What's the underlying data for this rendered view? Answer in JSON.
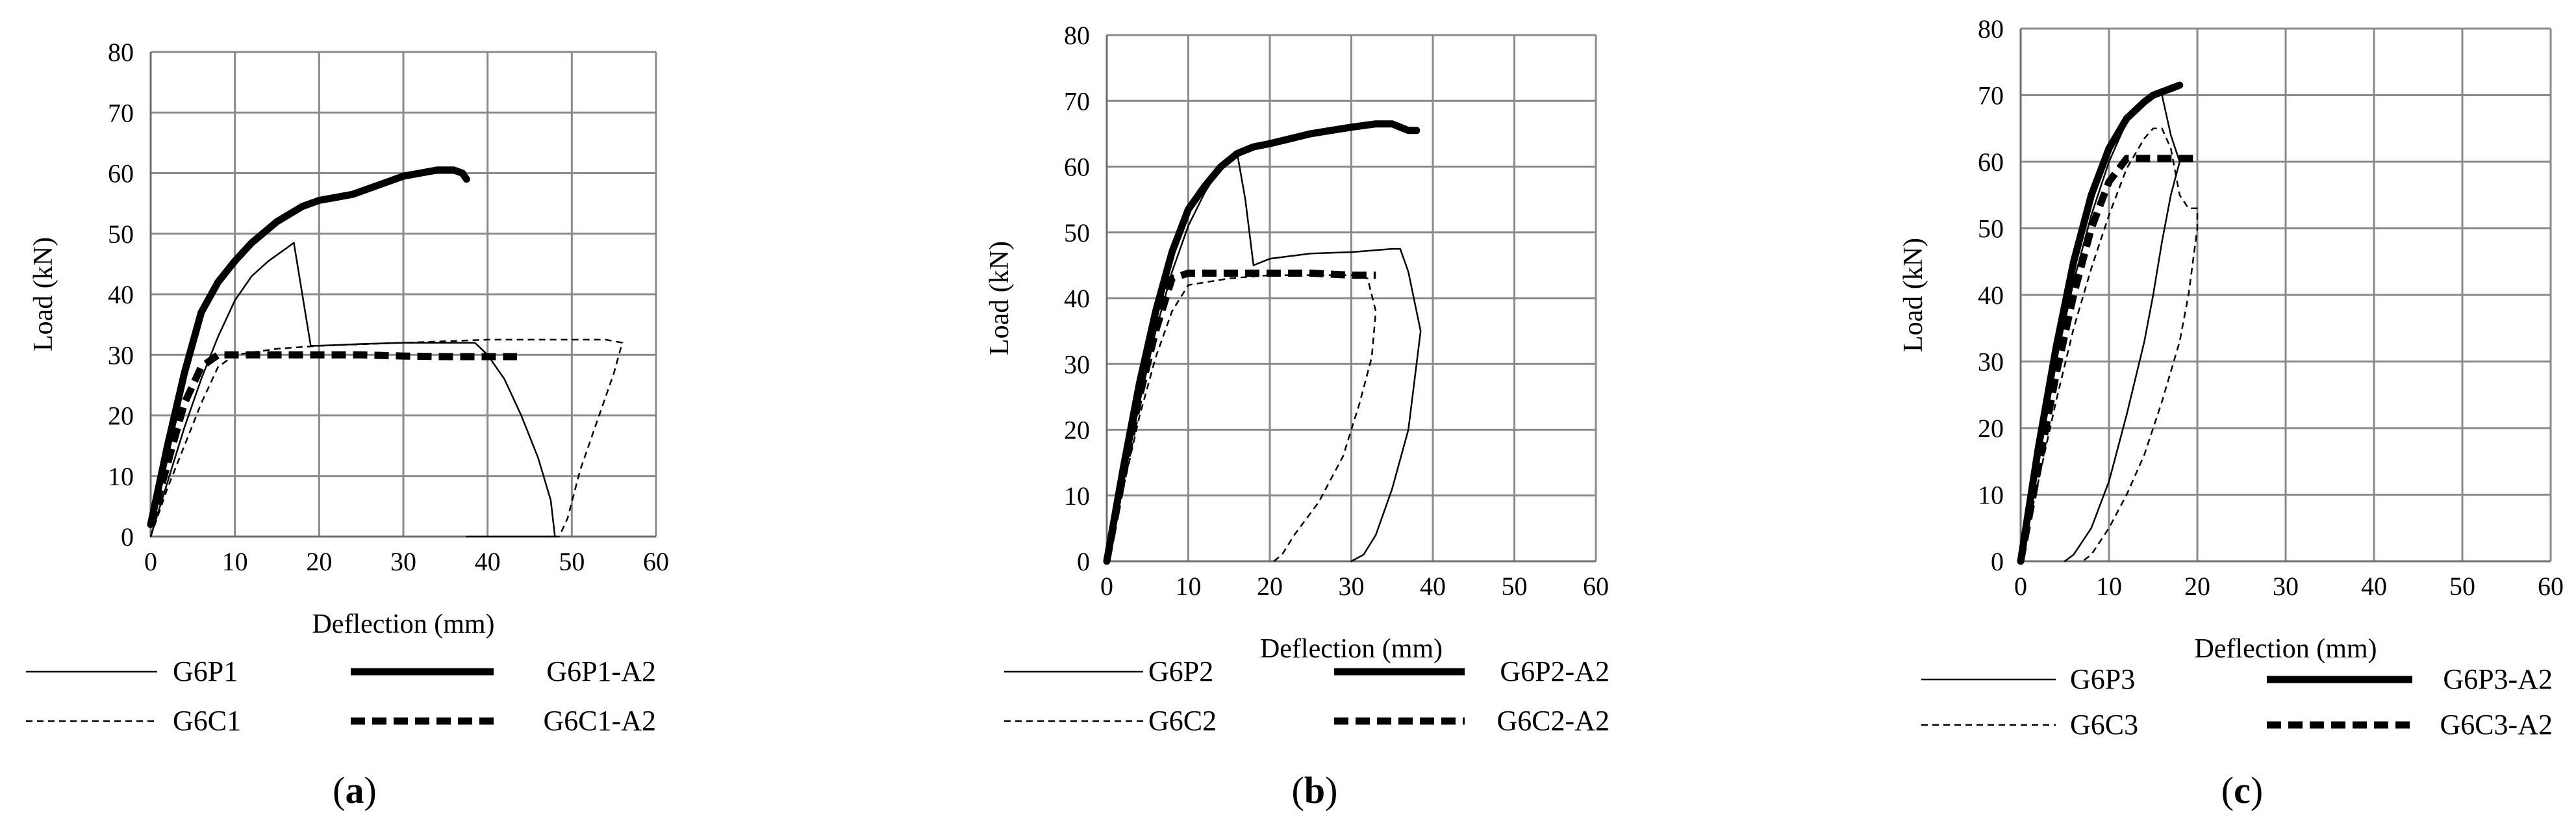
{
  "figure": {
    "panels": [
      "(a)",
      "(b)",
      "(c)"
    ]
  },
  "chart_data": [
    {
      "type": "line",
      "panel_label": "a",
      "xlabel": "Deflection (mm)",
      "ylabel": "Load (kN)",
      "xlim": [
        0,
        60
      ],
      "ylim": [
        0,
        80
      ],
      "xticks": [
        "0",
        "10",
        "20",
        "30",
        "40",
        "50",
        "60"
      ],
      "yticks": [
        "0",
        "10",
        "20",
        "30",
        "40",
        "50",
        "60",
        "70",
        "80"
      ],
      "grid": true,
      "legend": [
        "G6P1",
        "G6P1-A2",
        "G6C1",
        "G6C1-A2"
      ],
      "series": [
        {
          "name": "G6P1",
          "style": "thin-solid",
          "x": [
            0,
            2,
            4,
            6,
            8,
            10,
            12,
            14,
            16,
            17,
            18,
            19,
            20,
            25,
            30,
            35,
            38.5,
            40,
            42,
            44,
            46,
            47.5,
            48,
            46,
            43,
            40,
            37.5
          ],
          "y": [
            0,
            9,
            18,
            26,
            33,
            39,
            43,
            45.5,
            47.5,
            48.5,
            40,
            31.5,
            31.5,
            31.8,
            32,
            32,
            32,
            30,
            26,
            20,
            13,
            6,
            0,
            0,
            0,
            0,
            0
          ]
        },
        {
          "name": "G6P1-A2",
          "style": "thick-solid",
          "x": [
            0,
            2,
            4,
            6,
            8,
            10,
            12,
            15,
            18,
            20,
            22,
            24,
            26,
            28,
            30,
            32,
            34,
            35,
            36,
            37,
            37.5
          ],
          "y": [
            2,
            15,
            27,
            37,
            42,
            45.5,
            48.5,
            52,
            54.5,
            55.5,
            56,
            56.5,
            57.5,
            58.5,
            59.5,
            60,
            60.5,
            60.5,
            60.5,
            60,
            59
          ]
        },
        {
          "name": "G6C1",
          "style": "thin-dashed",
          "x": [
            0,
            2,
            4,
            6,
            8,
            10,
            15,
            20,
            30,
            40,
            50,
            54,
            56,
            55,
            53,
            51,
            49.5,
            48.5,
            47
          ],
          "y": [
            0,
            8,
            15,
            22,
            28,
            30,
            31,
            31.5,
            32,
            32.5,
            32.5,
            32.5,
            32,
            27,
            19,
            11,
            3,
            0,
            0
          ]
        },
        {
          "name": "G6C1-A2",
          "style": "thick-dashed",
          "x": [
            0,
            2,
            4,
            6,
            8,
            10,
            15,
            20,
            25,
            30,
            35,
            40,
            43.5
          ],
          "y": [
            2,
            12,
            22,
            28,
            30,
            30,
            30,
            30,
            30,
            29.8,
            29.7,
            29.7,
            29.7
          ]
        }
      ]
    },
    {
      "type": "line",
      "panel_label": "b",
      "xlabel": "Deflection (mm)",
      "ylabel": "Load (kN)",
      "xlim": [
        0,
        60
      ],
      "ylim": [
        0,
        80
      ],
      "xticks": [
        "0",
        "10",
        "20",
        "30",
        "40",
        "50",
        "60"
      ],
      "yticks": [
        "0",
        "10",
        "20",
        "30",
        "40",
        "50",
        "60",
        "70",
        "80"
      ],
      "grid": true,
      "legend": [
        "G6P2",
        "G6P2-A2",
        "G6C2",
        "G6C2-A2"
      ],
      "series": [
        {
          "name": "G6P2",
          "style": "thin-solid",
          "x": [
            0,
            2,
            4,
            6,
            8,
            10,
            12,
            14,
            15.5,
            16,
            17,
            18,
            20,
            25,
            30,
            35,
            36,
            37,
            38,
            38.5,
            37,
            35,
            33,
            31.5,
            30
          ],
          "y": [
            0,
            12,
            24,
            35,
            44,
            51,
            56,
            60,
            62,
            62,
            55,
            45,
            46,
            46.8,
            47,
            47.5,
            47.5,
            44,
            38,
            35,
            20,
            11,
            4,
            1,
            0
          ]
        },
        {
          "name": "G6P2-A2",
          "style": "thick-solid",
          "x": [
            0,
            2,
            4,
            6,
            8,
            10,
            12,
            14,
            16,
            18,
            20,
            25,
            30,
            33,
            35,
            36,
            37,
            38
          ],
          "y": [
            0,
            14,
            27,
            38,
            47,
            53.5,
            57,
            60,
            62,
            63,
            63.5,
            65,
            66,
            66.5,
            66.5,
            66,
            65.5,
            65.5
          ]
        },
        {
          "name": "G6C2",
          "style": "thin-dashed",
          "x": [
            0,
            2,
            4,
            6,
            8,
            10,
            15,
            20,
            25,
            30,
            32,
            33,
            32.5,
            31,
            29,
            26,
            23,
            21.5,
            20.5
          ],
          "y": [
            0,
            11,
            22,
            31,
            38,
            42,
            43,
            43.5,
            43.5,
            43.5,
            43,
            38,
            31,
            24,
            16,
            9,
            4,
            1,
            0
          ]
        },
        {
          "name": "G6C2-A2",
          "style": "thick-dashed",
          "x": [
            0,
            2,
            4,
            6,
            8,
            10,
            15,
            20,
            25,
            30,
            33
          ],
          "y": [
            0,
            13,
            25,
            35,
            43,
            43.8,
            43.8,
            43.8,
            43.8,
            43.5,
            43.5
          ]
        }
      ]
    },
    {
      "type": "line",
      "panel_label": "c",
      "xlabel": "Deflection (mm)",
      "ylabel": "Load (kN)",
      "xlim": [
        0,
        60
      ],
      "ylim": [
        0,
        80
      ],
      "xticks": [
        "0",
        "10",
        "20",
        "30",
        "40",
        "50",
        "60"
      ],
      "yticks": [
        "0",
        "10",
        "20",
        "30",
        "40",
        "50",
        "60",
        "70",
        "80"
      ],
      "grid": true,
      "legend": [
        "G6P3",
        "G6P3-A2",
        "G6C3",
        "G6C3-A2"
      ],
      "series": [
        {
          "name": "G6P3",
          "style": "thin-solid",
          "x": [
            0,
            2,
            4,
            6,
            8,
            10,
            12,
            14,
            15,
            16,
            17,
            18,
            17,
            16,
            15,
            14,
            12,
            10,
            8,
            6,
            5
          ],
          "y": [
            0,
            15,
            30,
            42,
            52,
            60,
            66,
            69,
            70,
            70,
            64,
            60,
            55,
            48,
            40,
            33,
            22,
            12,
            5,
            1,
            0
          ]
        },
        {
          "name": "G6P3-A2",
          "style": "thick-solid",
          "x": [
            0,
            2,
            4,
            6,
            8,
            10,
            12,
            14,
            15,
            16,
            17,
            18
          ],
          "y": [
            0,
            17,
            32,
            45,
            55,
            62,
            66.5,
            69,
            70,
            70.5,
            71,
            71.5
          ]
        },
        {
          "name": "G6C3",
          "style": "thin-dashed",
          "x": [
            0,
            2,
            4,
            6,
            8,
            10,
            12,
            14,
            15,
            16,
            17,
            18,
            19,
            20,
            20,
            19,
            18,
            16,
            14,
            12,
            10,
            8,
            7
          ],
          "y": [
            0,
            12,
            24,
            35,
            44,
            52,
            59,
            63.5,
            65,
            65,
            62,
            55,
            53,
            53,
            50,
            40,
            33,
            24,
            16,
            10,
            5,
            1,
            0
          ]
        },
        {
          "name": "G6C3-A2",
          "style": "thick-dashed",
          "x": [
            0,
            2,
            4,
            6,
            8,
            10,
            12,
            14,
            16,
            18,
            20
          ],
          "y": [
            0,
            14,
            28,
            40,
            50,
            57,
            60.5,
            60.5,
            60.5,
            60.5,
            60.5
          ]
        }
      ]
    }
  ]
}
